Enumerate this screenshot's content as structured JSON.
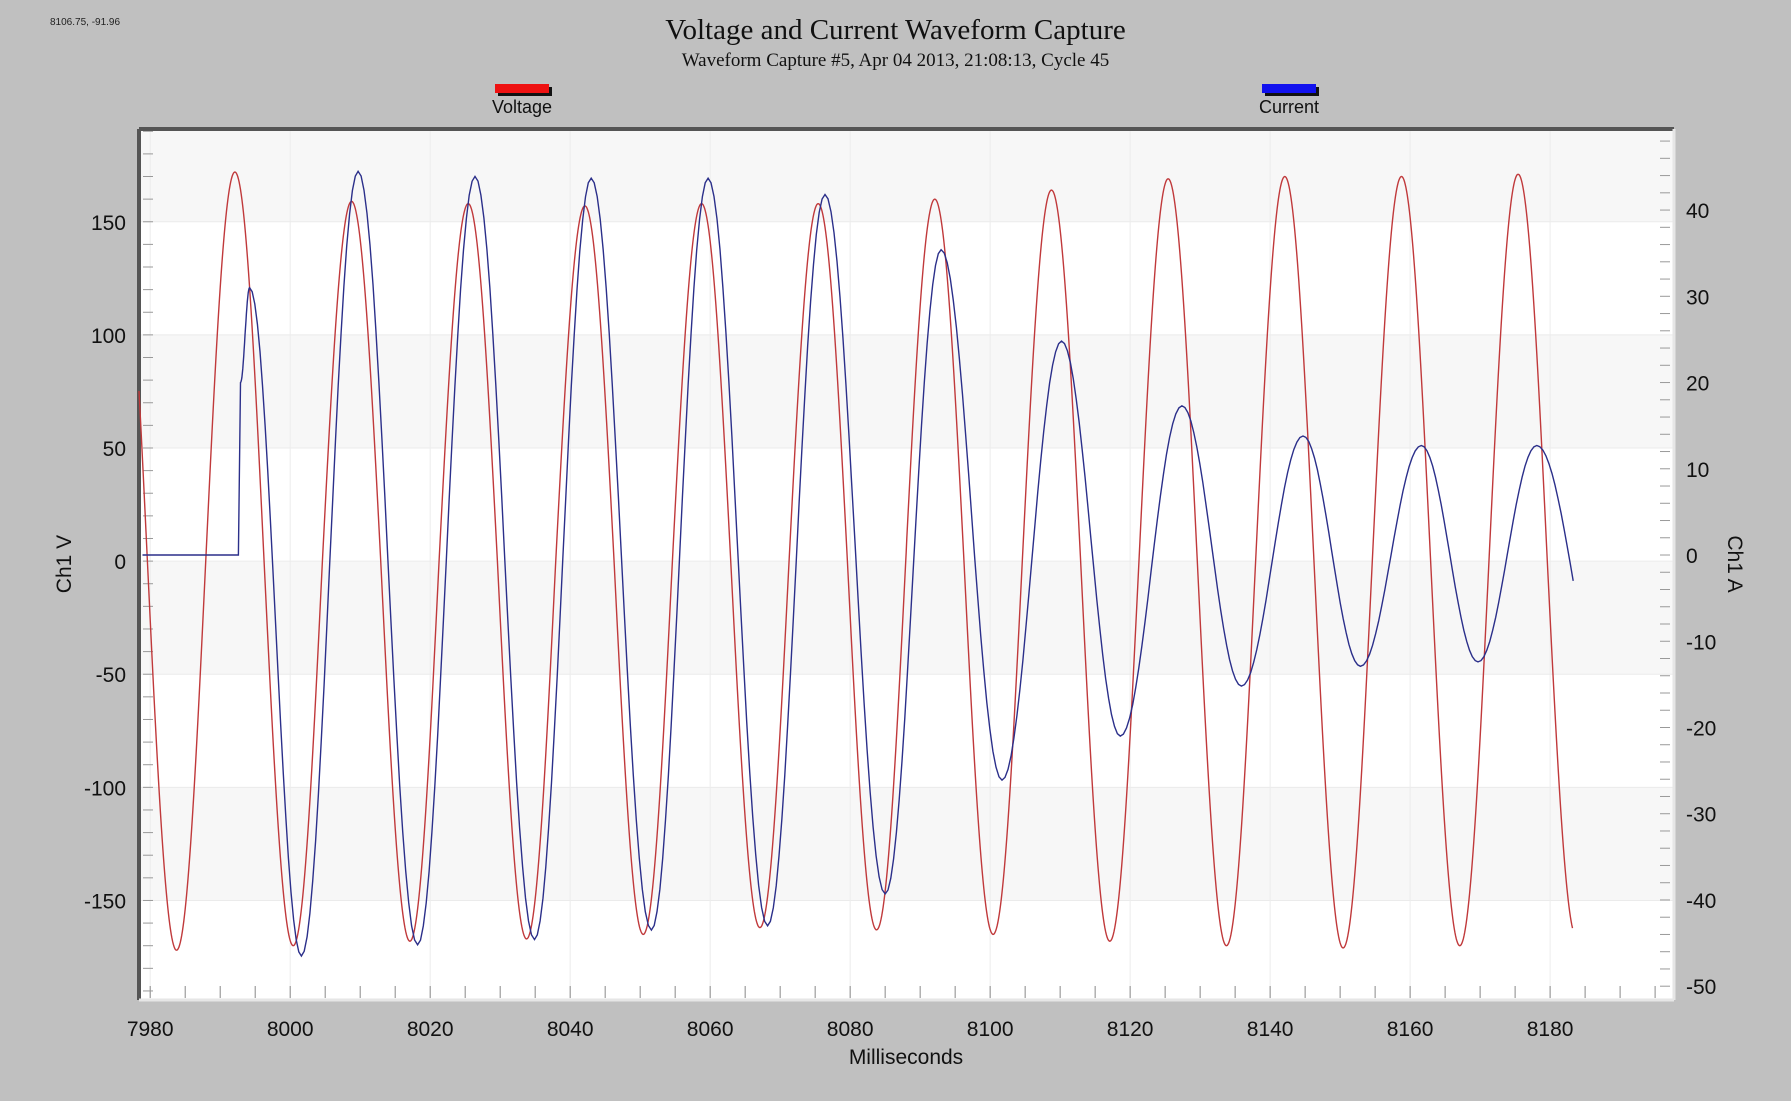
{
  "cursor_readout": "8106.75, -91.96",
  "colors": {
    "background": "#c0c0c0",
    "plot_bg": "#ffffff",
    "band_bg": "#f7f7f7",
    "voltage": "#c0393b",
    "current": "#2b2f8a",
    "legend_voltage": "#ee1111",
    "legend_current": "#1111ee",
    "frame": "#555555"
  },
  "chart_data": {
    "type": "line",
    "title": "Voltage and Current Waveform Capture",
    "subtitle": "Waveform Capture #5, Apr 04 2013, 21:08:13,  Cycle 45",
    "xlabel": "Milliseconds",
    "ylabel": "Ch1 V",
    "y2label": "Ch1 A",
    "xlim": [
      7978.4,
      8197.7
    ],
    "ylim": [
      -194,
      191
    ],
    "y2lim": [
      -51.6,
      49.4
    ],
    "x_ticks": [
      7980,
      8000,
      8020,
      8040,
      8060,
      8080,
      8100,
      8120,
      8140,
      8160,
      8180
    ],
    "y_ticks": [
      150,
      100,
      50,
      0,
      -50,
      -100,
      -150
    ],
    "y2_ticks": [
      40,
      30,
      20,
      10,
      0,
      -10,
      -20,
      -30,
      -40,
      -50
    ],
    "grid": true,
    "legend": {
      "position": "top",
      "entries": [
        "Voltage",
        "Current"
      ]
    },
    "series": [
      {
        "name": "Voltage",
        "axis": "left",
        "unit": "V",
        "frequency_hz": 60,
        "start_ms": 7978.4,
        "end_ms": 8183.3,
        "first_peak_ms": 7992.1,
        "peaks": [
          172,
          159,
          158,
          157,
          158,
          158,
          160,
          164,
          169,
          170,
          170,
          171
        ],
        "troughs": [
          -172,
          -170,
          -168,
          -167,
          -165,
          -162,
          -163,
          -165,
          -168,
          -170,
          -171,
          -170,
          -166
        ],
        "start_value": 45,
        "end_value": -166
      },
      {
        "name": "Current",
        "axis": "right",
        "unit": "A",
        "frequency_hz": 60,
        "flat_until_ms": 7992.6,
        "flat_value": 0,
        "end_ms": 8183.3,
        "peak_times_ms": [
          7994.2,
          8009.7,
          8026.4,
          8043.0,
          8059.7,
          8076.4,
          8093.0,
          8110.2,
          8127.4,
          8144.7,
          8161.6,
          8178.1
        ],
        "peaks": [
          31,
          44.5,
          43.9,
          43.7,
          43.7,
          41.8,
          35.4,
          24.8,
          17.3,
          13.8,
          12.7,
          12.7
        ],
        "trough_times_ms": [
          8001.6,
          8018.2,
          8034.9,
          8051.6,
          8068.2,
          8085.0,
          8101.7,
          8118.6,
          8135.9,
          8152.9,
          8169.7
        ],
        "troughs": [
          -46.5,
          -45.2,
          -44.6,
          -43.5,
          -43.0,
          -39.3,
          -26.1,
          -21.0,
          -15.2,
          -12.9,
          -12.4
        ],
        "end_value": -3
      }
    ]
  }
}
